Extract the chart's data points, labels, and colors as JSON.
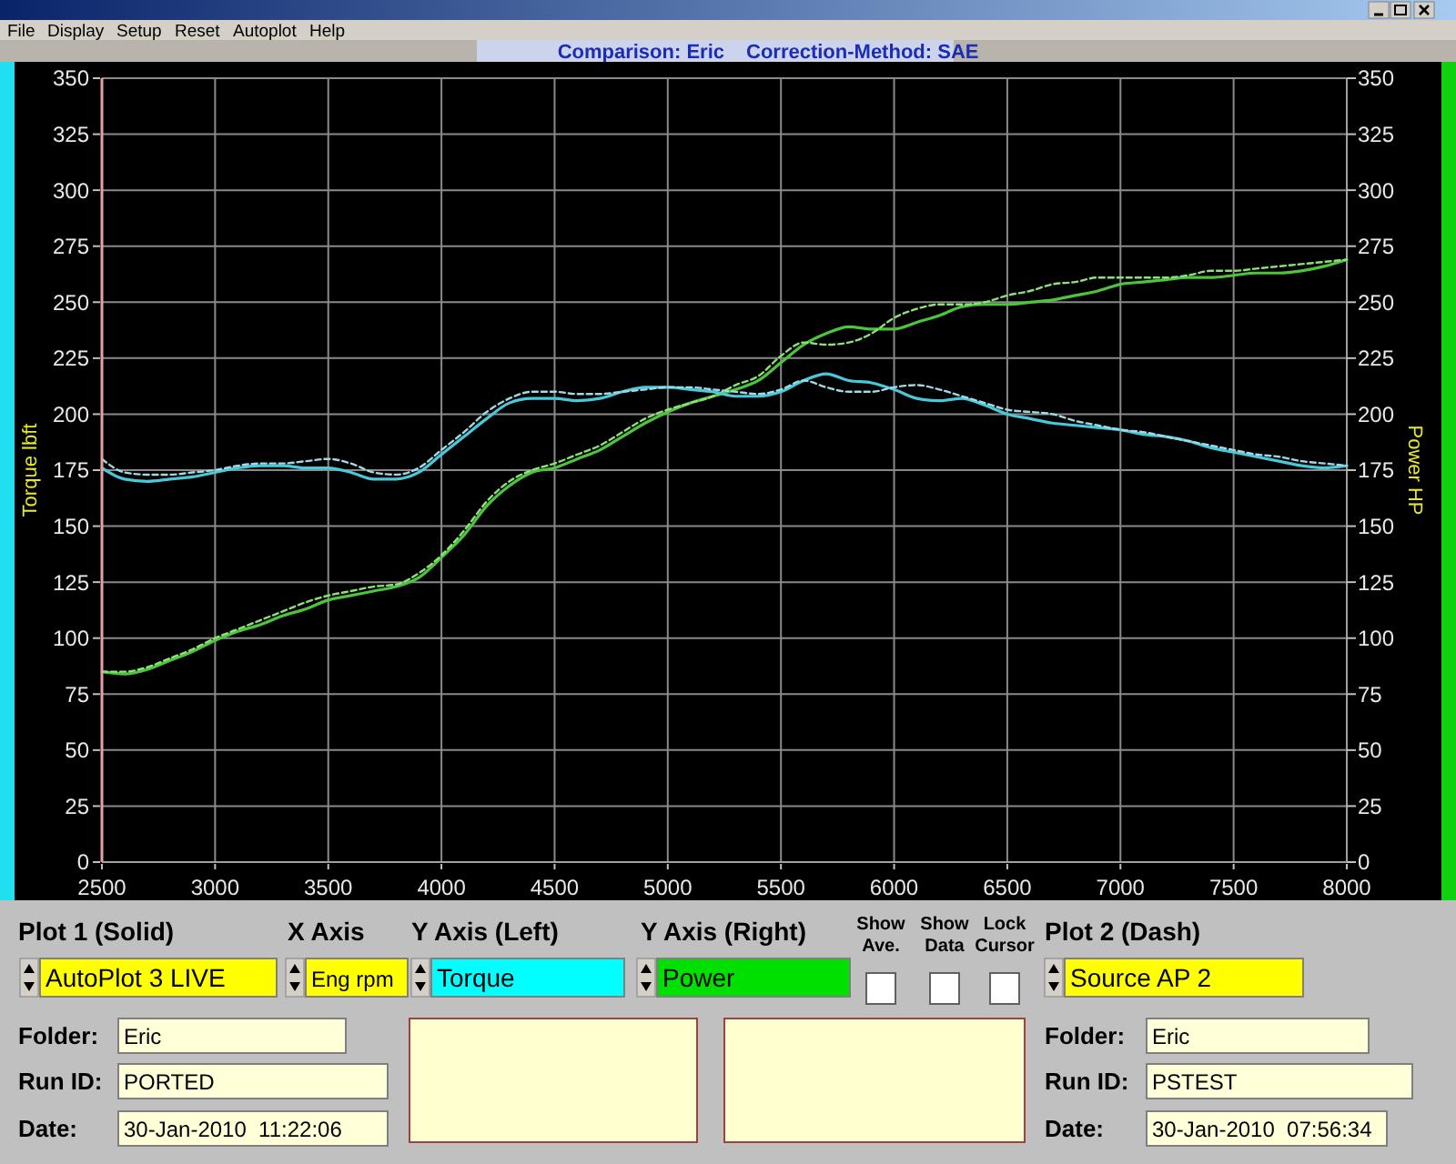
{
  "chart_data": {
    "type": "line",
    "title": "Comparison: Eric",
    "subtitle": "Correction-Method: SAE",
    "ylabel": "Torque lbft",
    "y2label": "Power HP",
    "x": [
      2500,
      2600,
      2700,
      2800,
      2900,
      3000,
      3100,
      3200,
      3300,
      3400,
      3500,
      3600,
      3700,
      3800,
      3900,
      4000,
      4100,
      4200,
      4300,
      4400,
      4500,
      4600,
      4700,
      4800,
      4900,
      5000,
      5100,
      5200,
      5300,
      5400,
      5500,
      5600,
      5700,
      5800,
      5900,
      6000,
      6100,
      6200,
      6300,
      6400,
      6500,
      6600,
      6700,
      6800,
      6900,
      7000,
      7100,
      7200,
      7300,
      7400,
      7500,
      7600,
      7700,
      7800,
      7900,
      8000
    ],
    "series": [
      {
        "color": "#48c8d8",
        "line_style": "solid",
        "values": [
          176,
          171,
          170,
          171,
          172,
          174,
          176,
          177,
          177,
          176,
          176,
          174,
          171,
          171,
          174,
          182,
          190,
          198,
          205,
          207,
          207,
          206,
          207,
          210,
          212,
          212,
          211,
          210,
          208,
          208,
          210,
          215,
          218,
          215,
          214,
          211,
          207,
          206,
          207,
          204,
          200,
          198,
          196,
          195,
          194,
          193,
          191,
          190,
          188,
          185,
          183,
          181,
          179,
          177,
          176,
          177
        ]
      },
      {
        "color": "#a0d8e4",
        "line_style": "dashed",
        "values": [
          180,
          174,
          173,
          173,
          174,
          175,
          177,
          178,
          178,
          179,
          180,
          178,
          174,
          173,
          176,
          184,
          192,
          201,
          207,
          210,
          210,
          209,
          209,
          210,
          211,
          212,
          212,
          211,
          210,
          209,
          211,
          215,
          212,
          210,
          210,
          212,
          213,
          211,
          208,
          205,
          202,
          201,
          200,
          197,
          195,
          193,
          192,
          190,
          188,
          186,
          184,
          182,
          181,
          179,
          178,
          177
        ]
      },
      {
        "color": "#4cc43c",
        "line_style": "solid",
        "axis": "y2",
        "values": [
          85,
          84,
          86,
          90,
          94,
          99,
          103,
          106,
          110,
          113,
          117,
          119,
          121,
          123,
          127,
          136,
          146,
          159,
          168,
          174,
          176,
          180,
          184,
          190,
          196,
          201,
          205,
          208,
          211,
          215,
          223,
          231,
          236,
          239,
          238,
          238,
          241,
          244,
          248,
          249,
          249,
          250,
          251,
          253,
          255,
          258,
          259,
          260,
          261,
          261,
          262,
          263,
          263,
          264,
          266,
          269
        ]
      },
      {
        "color": "#8ee07a",
        "line_style": "dashed",
        "axis": "y2",
        "values": [
          85,
          85,
          87,
          91,
          95,
          100,
          104,
          108,
          112,
          116,
          119,
          121,
          123,
          124,
          129,
          137,
          148,
          161,
          170,
          175,
          178,
          182,
          186,
          192,
          198,
          202,
          205,
          208,
          213,
          217,
          226,
          232,
          231,
          232,
          236,
          243,
          247,
          249,
          249,
          250,
          253,
          255,
          258,
          259,
          261,
          261,
          261,
          261,
          262,
          264,
          264,
          265,
          266,
          267,
          268,
          269
        ]
      }
    ],
    "xlim": [
      2500,
      8000
    ],
    "xticks": [
      2500,
      3000,
      3500,
      4000,
      4500,
      5000,
      5500,
      6000,
      6500,
      7000,
      7500,
      8000
    ],
    "ylim": [
      0,
      350
    ],
    "yticks": [
      0,
      25,
      50,
      75,
      100,
      125,
      150,
      175,
      200,
      225,
      250,
      275,
      300,
      325,
      350
    ],
    "y2lim": [
      0,
      350
    ],
    "y2ticks": [
      0,
      25,
      50,
      75,
      100,
      125,
      150,
      175,
      200,
      225,
      250,
      275,
      300,
      325,
      350
    ],
    "grid": true,
    "annotations": [
      "File",
      "Display",
      "Setup",
      "Reset",
      "Autoplot",
      "Help",
      "Plot 1 (Solid)",
      "X Axis",
      "Y Axis (Left)",
      "Y Axis (Right)",
      "Show Ave.",
      "Show Data",
      "Lock Cursor",
      "Plot 2 (Dash)",
      "AutoPlot 3 LIVE",
      "Eng rpm",
      "Torque",
      "Power",
      "Source AP 2",
      "Folder:",
      "Eric",
      "Run ID:",
      "PORTED",
      "Date:",
      "30-Jan-2010  11:22:06",
      "Folder:",
      "Eric",
      "Run ID:",
      "PSTEST",
      "Date:",
      "30-Jan-2010  07:56:34"
    ]
  }
}
